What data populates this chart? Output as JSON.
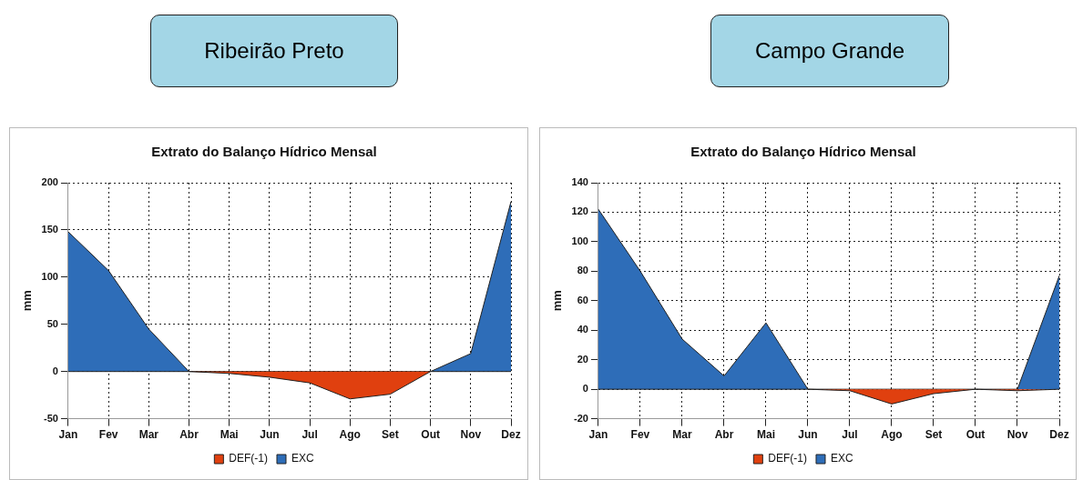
{
  "chart_data": [
    {
      "type": "area",
      "title": "Ribeirão Preto",
      "subtitle": "Extrato do Balanço Hídrico Mensal",
      "ylabel": "mm",
      "categories": [
        "Jan",
        "Fev",
        "Mar",
        "Abr",
        "Mai",
        "Jun",
        "Jul",
        "Ago",
        "Set",
        "Out",
        "Nov",
        "Dez"
      ],
      "series": [
        {
          "name": "DEF(-1)",
          "color": "#e0400f",
          "values": [
            0,
            0,
            0,
            0,
            -2,
            -6,
            -12,
            -29,
            -24,
            0,
            0,
            0
          ]
        },
        {
          "name": "EXC",
          "color": "#2e6db8",
          "values": [
            148,
            107,
            45,
            0,
            0,
            0,
            0,
            0,
            0,
            0,
            19,
            180
          ]
        }
      ],
      "ylim": [
        -50,
        200
      ],
      "yticks": [
        -50,
        0,
        50,
        100,
        150,
        200
      ],
      "grid": true,
      "legend": "bottom"
    },
    {
      "type": "area",
      "title": "Campo Grande",
      "subtitle": "Extrato do Balanço Hídrico Mensal",
      "ylabel": "mm",
      "categories": [
        "Jan",
        "Fev",
        "Mar",
        "Abr",
        "Mai",
        "Jun",
        "Jul",
        "Ago",
        "Set",
        "Out",
        "Nov",
        "Dez"
      ],
      "series": [
        {
          "name": "DEF(-1)",
          "color": "#e0400f",
          "values": [
            0,
            0,
            0,
            0,
            0,
            0,
            -1,
            -10,
            -3,
            0,
            -1,
            0
          ]
        },
        {
          "name": "EXC",
          "color": "#2e6db8",
          "values": [
            122,
            80,
            34,
            9,
            45,
            0,
            0,
            0,
            0,
            0,
            0,
            77
          ]
        }
      ],
      "ylim": [
        -20,
        140
      ],
      "yticks": [
        -20,
        0,
        20,
        40,
        60,
        80,
        100,
        120,
        140
      ],
      "grid": true,
      "legend": "bottom"
    }
  ]
}
